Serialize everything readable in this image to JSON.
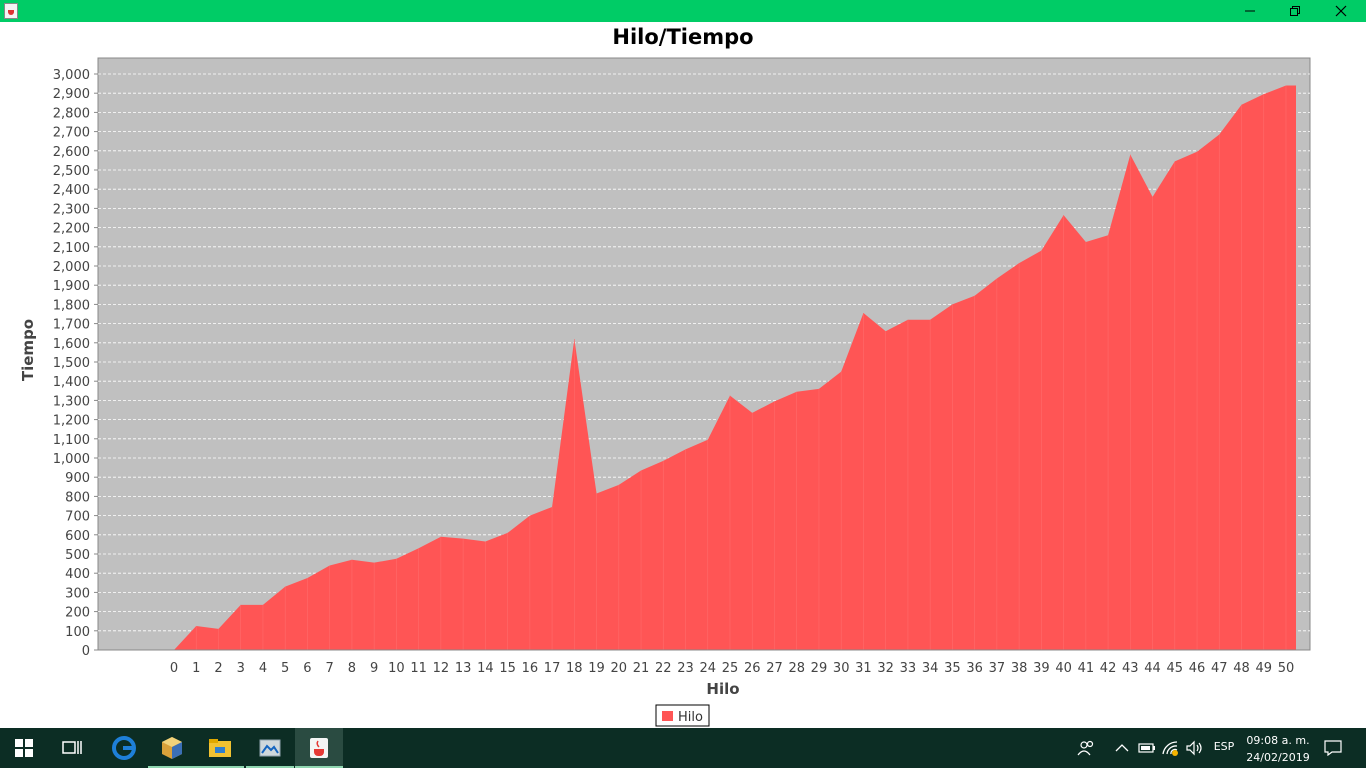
{
  "window": {
    "title": "",
    "controls": [
      "minimize-icon",
      "restore-icon",
      "close-icon"
    ],
    "titlebar_color": "#00cc66"
  },
  "chart_data": {
    "type": "area",
    "title": "Hilo/Tiempo",
    "xlabel": "Hilo",
    "ylabel": "Tiempo",
    "x": [
      0,
      1,
      2,
      3,
      4,
      5,
      6,
      7,
      8,
      9,
      10,
      11,
      12,
      13,
      14,
      15,
      16,
      17,
      18,
      19,
      20,
      21,
      22,
      23,
      24,
      25,
      26,
      27,
      28,
      29,
      30,
      31,
      32,
      33,
      34,
      35,
      36,
      37,
      38,
      39,
      40,
      41,
      42,
      43,
      44,
      45,
      46,
      47,
      48,
      49,
      50
    ],
    "series": [
      {
        "name": "Hilo",
        "color": "#ff5555",
        "values": [
          0,
          125,
          110,
          235,
          235,
          330,
          375,
          440,
          470,
          455,
          475,
          530,
          590,
          580,
          565,
          610,
          700,
          745,
          1620,
          815,
          860,
          935,
          985,
          1045,
          1095,
          1325,
          1235,
          1295,
          1345,
          1360,
          1450,
          1755,
          1660,
          1720,
          1720,
          1800,
          1845,
          1935,
          2015,
          2080,
          2265,
          2125,
          2160,
          2580,
          2360,
          2545,
          2595,
          2685,
          2840,
          2895,
          2940
        ]
      }
    ],
    "ylim": [
      0,
      3000
    ],
    "ytick_step": 100,
    "grid": true,
    "plot_background": "#c0c0c0",
    "legend": "bottom-center"
  },
  "taskbar": {
    "apps": [
      "windows-start-icon",
      "task-view-icon",
      "edge-browser-icon",
      "netbeans-icon",
      "file-explorer-icon",
      "image-viewer-icon",
      "java-icon"
    ],
    "language": "ESP",
    "time": "09:08 a. m.",
    "date": "24/02/2019"
  }
}
